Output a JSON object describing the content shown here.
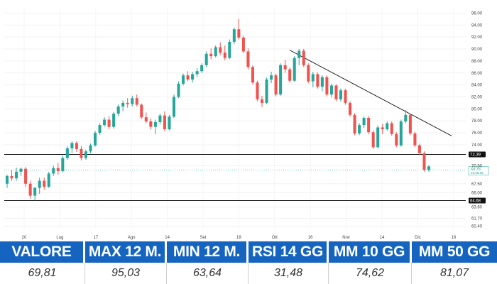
{
  "chart_data": {
    "type": "candlestick",
    "x_ticks": [
      "20",
      "Lug",
      "17",
      "Ago",
      "14",
      "Set",
      "18",
      "Ott",
      "16",
      "Nov",
      "14",
      "Dic",
      "18"
    ],
    "y_ticks": [
      "96.00",
      "94.00",
      "92.00",
      "90.00",
      "88.00",
      "86.00",
      "84.00",
      "82.00",
      "80.00",
      "78.00",
      "76.00",
      "74.00",
      "72.39",
      "70.50",
      "67.50",
      "66.00",
      "63.60",
      "61.70",
      "60.40"
    ],
    "ylim": [
      60,
      97
    ],
    "horizontal_levels": [
      {
        "label": "72.39",
        "value": 72.39
      },
      {
        "label": "64.68",
        "value": 64.68
      }
    ],
    "last_price": {
      "value": 69.78,
      "label": "69.78",
      "time": "16:55:35"
    },
    "trendline": {
      "from": [
        0,
        89.8
      ],
      "to": [
        1,
        75.5
      ]
    },
    "up_color": "#26a69a",
    "down_color": "#ef5350",
    "candles": [
      [
        67.5,
        69.0,
        66.8,
        68.8
      ],
      [
        68.8,
        69.8,
        68.0,
        68.4
      ],
      [
        68.4,
        70.2,
        68.0,
        69.5
      ],
      [
        69.5,
        70.2,
        68.8,
        70.0
      ],
      [
        70.0,
        70.3,
        67.0,
        67.5
      ],
      [
        67.5,
        68.0,
        65.0,
        65.5
      ],
      [
        65.5,
        67.0,
        64.68,
        66.8
      ],
      [
        66.8,
        68.5,
        65.8,
        68.0
      ],
      [
        68.0,
        68.5,
        66.5,
        67.0
      ],
      [
        67.0,
        69.5,
        66.8,
        69.2
      ],
      [
        69.2,
        70.5,
        68.8,
        70.1
      ],
      [
        70.1,
        71.0,
        69.0,
        69.6
      ],
      [
        69.6,
        72.2,
        69.4,
        71.8
      ],
      [
        71.8,
        73.8,
        71.5,
        73.4
      ],
      [
        73.4,
        74.6,
        72.6,
        74.3
      ],
      [
        74.3,
        74.6,
        72.8,
        73.3
      ],
      [
        73.3,
        73.8,
        71.4,
        71.8
      ],
      [
        71.8,
        73.2,
        71.5,
        72.9
      ],
      [
        72.9,
        74.2,
        72.6,
        73.9
      ],
      [
        73.9,
        76.3,
        73.7,
        76.0
      ],
      [
        76.0,
        77.6,
        75.7,
        77.3
      ],
      [
        77.3,
        78.6,
        77.0,
        78.2
      ],
      [
        78.2,
        78.8,
        76.6,
        77.0
      ],
      [
        77.0,
        79.5,
        76.7,
        79.2
      ],
      [
        79.2,
        80.7,
        78.8,
        80.4
      ],
      [
        80.4,
        81.4,
        79.6,
        81.0
      ],
      [
        81.0,
        81.8,
        80.2,
        80.8
      ],
      [
        80.8,
        82.2,
        80.4,
        81.8
      ],
      [
        81.8,
        82.4,
        80.4,
        80.7
      ],
      [
        80.7,
        80.9,
        78.3,
        78.6
      ],
      [
        78.6,
        79.4,
        77.6,
        77.9
      ],
      [
        77.9,
        78.4,
        76.6,
        77.0
      ],
      [
        77.0,
        78.2,
        75.8,
        77.8
      ],
      [
        77.8,
        79.2,
        77.4,
        78.9
      ],
      [
        78.9,
        79.6,
        76.3,
        76.6
      ],
      [
        76.6,
        79.0,
        76.4,
        78.7
      ],
      [
        78.7,
        82.4,
        78.5,
        82.0
      ],
      [
        82.0,
        84.6,
        81.8,
        84.2
      ],
      [
        84.2,
        85.9,
        83.9,
        85.6
      ],
      [
        85.6,
        86.3,
        84.6,
        84.9
      ],
      [
        84.9,
        86.2,
        84.4,
        85.8
      ],
      [
        85.8,
        86.8,
        85.3,
        86.3
      ],
      [
        86.3,
        87.6,
        86.0,
        87.3
      ],
      [
        87.3,
        89.6,
        87.0,
        89.2
      ],
      [
        89.2,
        90.1,
        88.3,
        88.8
      ],
      [
        88.8,
        90.6,
        88.6,
        90.3
      ],
      [
        90.3,
        91.1,
        89.0,
        89.4
      ],
      [
        89.4,
        90.6,
        88.1,
        88.5
      ],
      [
        88.5,
        91.6,
        88.3,
        91.2
      ],
      [
        91.2,
        93.6,
        90.8,
        93.3
      ],
      [
        93.3,
        95.03,
        91.6,
        91.9
      ],
      [
        91.9,
        92.2,
        89.3,
        89.6
      ],
      [
        89.6,
        90.1,
        86.6,
        87.0
      ],
      [
        87.0,
        87.3,
        84.1,
        84.4
      ],
      [
        84.4,
        84.7,
        81.3,
        81.6
      ],
      [
        81.6,
        82.2,
        80.3,
        81.0
      ],
      [
        81.0,
        85.2,
        80.8,
        84.9
      ],
      [
        84.9,
        86.2,
        84.3,
        85.6
      ],
      [
        85.6,
        85.9,
        82.1,
        82.4
      ],
      [
        82.4,
        87.6,
        82.2,
        87.3
      ],
      [
        87.3,
        88.2,
        86.0,
        86.6
      ],
      [
        86.6,
        86.9,
        84.4,
        84.7
      ],
      [
        84.7,
        88.8,
        84.5,
        88.5
      ],
      [
        88.5,
        90.0,
        87.3,
        89.7
      ],
      [
        89.7,
        90.0,
        87.0,
        87.3
      ],
      [
        87.3,
        87.6,
        84.3,
        84.6
      ],
      [
        84.6,
        86.2,
        83.6,
        85.8
      ],
      [
        85.8,
        86.1,
        83.4,
        83.7
      ],
      [
        83.7,
        85.6,
        82.9,
        85.3
      ],
      [
        85.3,
        85.6,
        82.1,
        82.4
      ],
      [
        82.4,
        84.2,
        81.9,
        83.9
      ],
      [
        83.9,
        84.1,
        81.3,
        81.6
      ],
      [
        81.6,
        83.4,
        81.2,
        83.1
      ],
      [
        83.1,
        83.3,
        80.7,
        81.0
      ],
      [
        81.0,
        81.3,
        78.7,
        79.0
      ],
      [
        79.0,
        79.3,
        75.6,
        75.9
      ],
      [
        75.9,
        77.6,
        75.6,
        77.3
      ],
      [
        77.3,
        78.8,
        76.8,
        78.5
      ],
      [
        78.5,
        78.8,
        75.8,
        76.1
      ],
      [
        76.1,
        76.4,
        73.3,
        73.6
      ],
      [
        73.6,
        77.2,
        73.4,
        76.9
      ],
      [
        76.9,
        77.5,
        75.8,
        76.6
      ],
      [
        76.6,
        77.9,
        76.3,
        77.6
      ],
      [
        77.6,
        77.9,
        75.5,
        75.8
      ],
      [
        75.8,
        76.1,
        73.6,
        73.9
      ],
      [
        73.9,
        78.2,
        73.7,
        77.9
      ],
      [
        77.9,
        79.8,
        77.6,
        79.0
      ],
      [
        79.0,
        79.2,
        75.6,
        75.9
      ],
      [
        75.9,
        76.2,
        73.6,
        73.9
      ],
      [
        73.9,
        74.2,
        72.3,
        72.6
      ],
      [
        72.6,
        72.9,
        69.5,
        69.8
      ],
      [
        69.8,
        70.6,
        69.5,
        70.4
      ]
    ]
  },
  "stats": {
    "headers": [
      "VALORE",
      "MAX 12 M.",
      "MIN 12 M.",
      "RSI 14 GG",
      "MM 10 GG",
      "MM 50 GG"
    ],
    "values": [
      "69,81",
      "95,03",
      "63,64",
      "31,48",
      "74,62",
      "81,07"
    ]
  }
}
